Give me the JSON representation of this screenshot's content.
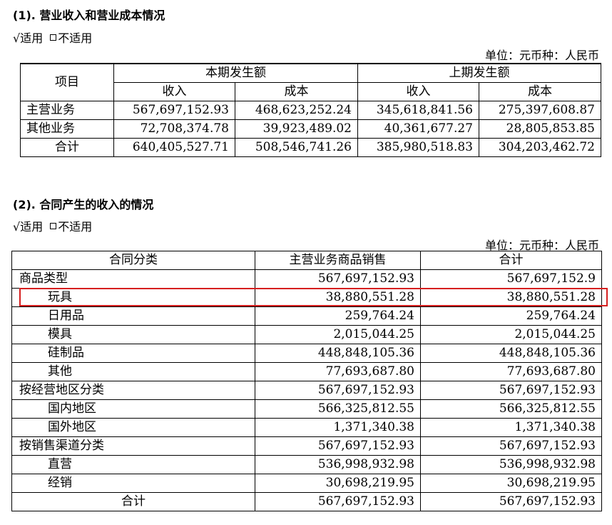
{
  "section1": {
    "heading": "(1). 营业收入和营业成本情况",
    "applicable": "√适用",
    "not_applicable": "不适用",
    "unit": "单位：元币种：人民币",
    "header": {
      "item": "项目",
      "current_period": "本期发生额",
      "previous_period": "上期发生额",
      "revenue": "收入",
      "cost": "成本"
    },
    "rows": [
      {
        "label": "主营业务",
        "cur_rev": "567,697,152.93",
        "cur_cost": "468,623,252.24",
        "prev_rev": "345,618,841.56",
        "prev_cost": "275,397,608.87"
      },
      {
        "label": "其他业务",
        "cur_rev": "72,708,374.78",
        "cur_cost": "39,923,489.02",
        "prev_rev": "40,361,677.27",
        "prev_cost": "28,805,853.85"
      },
      {
        "label": "合计",
        "cur_rev": "640,405,527.71",
        "cur_cost": "508,546,741.26",
        "prev_rev": "385,980,518.83",
        "prev_cost": "304,203,462.72"
      }
    ]
  },
  "section2": {
    "heading": "(2). 合同产生的收入的情况",
    "applicable": "√适用",
    "not_applicable": "不适用",
    "unit": "单位：元币种：人民币",
    "header": {
      "category": "合同分类",
      "main_sales": "主营业务商品销售",
      "total": "合计"
    },
    "rows": [
      {
        "label": "商品类型",
        "main": "567,697,152.93",
        "total": "567,697,152.9"
      },
      {
        "label": "玩具",
        "main": "38,880,551.28",
        "total": "38,880,551.28"
      },
      {
        "label": "日用品",
        "main": "259,764.24",
        "total": "259,764.24"
      },
      {
        "label": "模具",
        "main": "2,015,044.25",
        "total": "2,015,044.25"
      },
      {
        "label": "硅制品",
        "main": "448,848,105.36",
        "total": "448,848,105.36"
      },
      {
        "label": "其他",
        "main": "77,693,687.80",
        "total": "77,693,687.80"
      },
      {
        "label": "按经营地区分类",
        "main": "567,697,152.93",
        "total": "567,697,152.93"
      },
      {
        "label": "国内地区",
        "main": "566,325,812.55",
        "total": "566,325,812.55"
      },
      {
        "label": "国外地区",
        "main": "1,371,340.38",
        "total": "1,371,340.38"
      },
      {
        "label": "按销售渠道分类",
        "main": "567,697,152.93",
        "total": "567,697,152.93"
      },
      {
        "label": "直营",
        "main": "536,998,932.98",
        "total": "536,998,932.98"
      },
      {
        "label": "经销",
        "main": "30,698,219.95",
        "total": "30,698,219.95"
      },
      {
        "label": "合计",
        "main": "567,697,152.93",
        "total": "567,697,152.93"
      }
    ]
  }
}
